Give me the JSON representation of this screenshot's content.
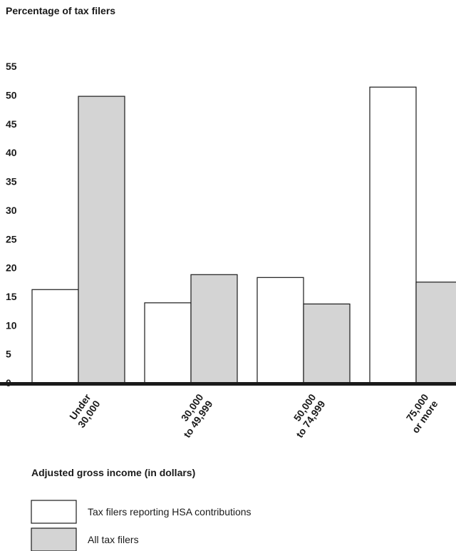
{
  "chart_data": {
    "type": "bar",
    "ylabel": "Percentage of tax filers",
    "xlabel": "Adjusted gross income (in dollars)",
    "ylim": [
      0,
      55
    ],
    "yticks": [
      0,
      5,
      10,
      15,
      20,
      25,
      30,
      35,
      40,
      45,
      50,
      55
    ],
    "grid": false,
    "legend_position": "bottom-left",
    "categories": [
      [
        "Under",
        "30,000"
      ],
      [
        "30,000",
        "to 49,999"
      ],
      [
        "50,000",
        "to 74,999"
      ],
      [
        "75,000",
        "or more"
      ]
    ],
    "series": [
      {
        "name": "Tax filers reporting HSA contributions",
        "values": [
          16.2,
          13.9,
          18.3,
          51.4
        ],
        "color": "#ffffff"
      },
      {
        "name": "All tax filers",
        "values": [
          49.8,
          18.8,
          13.7,
          17.5
        ],
        "color": "#d4d4d4"
      }
    ]
  }
}
